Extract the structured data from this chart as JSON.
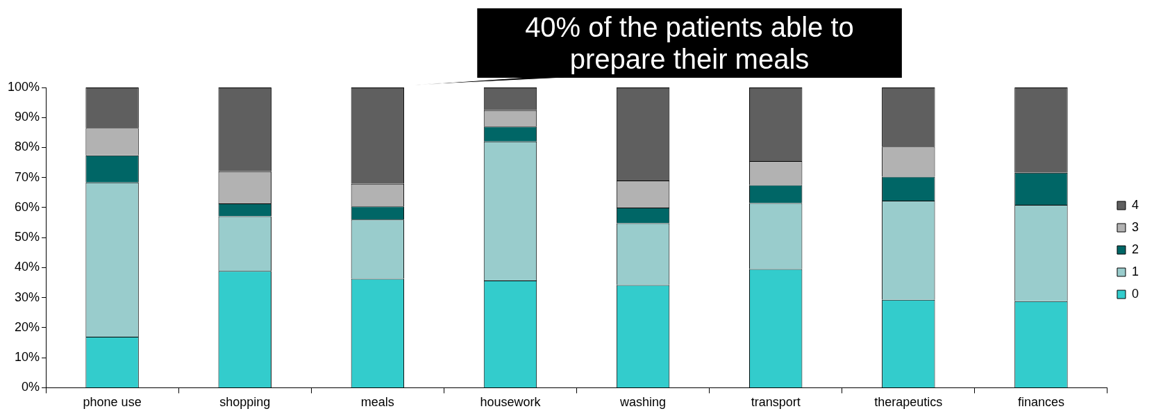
{
  "chart_data": {
    "type": "bar",
    "stacked": true,
    "categories": [
      "phone use",
      "shopping",
      "meals",
      "housework",
      "washing",
      "transport",
      "therapeutics",
      "finances"
    ],
    "series": [
      {
        "name": "0",
        "color": "#33cccc",
        "values": [
          17,
          38.9,
          36.3,
          35.7,
          34.2,
          39.5,
          29.3,
          28.8
        ]
      },
      {
        "name": "1",
        "color": "#99cccc",
        "values": [
          51.4,
          18.2,
          19.7,
          46.3,
          20.6,
          22,
          33,
          32.1
        ]
      },
      {
        "name": "2",
        "color": "#006666",
        "values": [
          9,
          4.3,
          4.4,
          5,
          5.2,
          6,
          8,
          10.7
        ]
      },
      {
        "name": "3",
        "color": "#b2b2b2",
        "values": [
          9.1,
          10.7,
          7.5,
          5.4,
          9,
          8,
          10,
          0
        ]
      },
      {
        "name": "4",
        "color": "#5f5f5f",
        "values": [
          13.5,
          27.9,
          32.1,
          7.6,
          31,
          24.5,
          19.7,
          28.4
        ]
      }
    ],
    "ylim": [
      0,
      100
    ],
    "yticks": [
      {
        "value": 0,
        "label": "0%"
      },
      {
        "value": 10,
        "label": "10%"
      },
      {
        "value": 20,
        "label": "20%"
      },
      {
        "value": 30,
        "label": "30%"
      },
      {
        "value": 40,
        "label": "40%"
      },
      {
        "value": 50,
        "label": "50%"
      },
      {
        "value": 60,
        "label": "60%"
      },
      {
        "value": 70,
        "label": "70%"
      },
      {
        "value": 80,
        "label": "80%"
      },
      {
        "value": 90,
        "label": "90%"
      },
      {
        "value": 100,
        "label": "100%"
      }
    ],
    "grid": false,
    "legend": "right",
    "annotations": [
      "40% of the patients able to prepare their meals"
    ]
  }
}
